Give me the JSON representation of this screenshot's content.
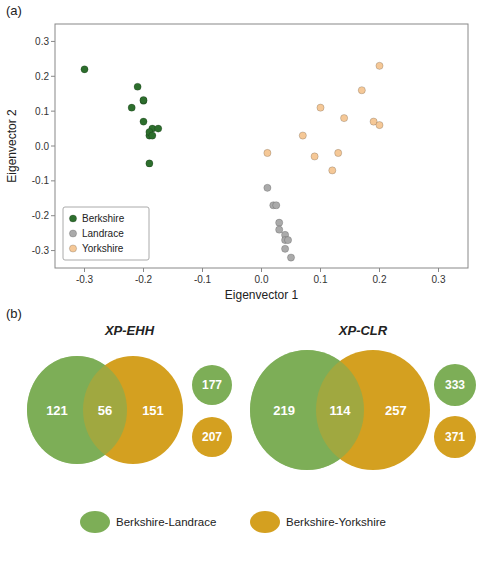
{
  "chart_data": [
    {
      "type": "scatter",
      "title": "(a)",
      "xlabel": "Eigenvector 1",
      "ylabel": "Eigenvector 2",
      "xlim": [
        -0.35,
        0.35
      ],
      "ylim": [
        -0.35,
        0.35
      ],
      "xticks": [
        -0.3,
        -0.2,
        -0.1,
        {
          "value": 0.0,
          "label": "0.0"
        },
        0.1,
        0.2,
        0.3
      ],
      "yticks": [
        -0.3,
        -0.2,
        -0.1,
        {
          "value": 0.0,
          "label": "0.0"
        },
        0.1,
        0.2,
        0.3
      ],
      "grid": false,
      "legend": "lower left",
      "series": [
        {
          "name": "Berkshire",
          "color": "#2d6e2d",
          "x": [
            -0.3,
            -0.21,
            -0.22,
            -0.2,
            -0.2,
            -0.2,
            -0.19,
            -0.185,
            -0.19,
            -0.19,
            -0.185,
            -0.175
          ],
          "y": [
            0.22,
            0.17,
            0.11,
            0.13,
            0.132,
            0.07,
            0.03,
            0.05,
            0.04,
            -0.05,
            0.03,
            0.05
          ]
        },
        {
          "name": "Landrace",
          "color": "#aaaaaa",
          "x": [
            0.01,
            0.02,
            0.025,
            0.03,
            0.03,
            0.04,
            0.04,
            0.04,
            0.045,
            0.05
          ],
          "y": [
            -0.12,
            -0.17,
            -0.17,
            -0.22,
            -0.24,
            -0.255,
            -0.27,
            -0.295,
            -0.27,
            -0.32
          ]
        },
        {
          "name": "Yorkshire",
          "color": "#f5c897",
          "x": [
            0.01,
            0.07,
            0.09,
            0.1,
            0.12,
            0.13,
            0.14,
            0.17,
            0.19,
            0.2,
            0.2
          ],
          "y": [
            -0.02,
            0.03,
            -0.03,
            0.11,
            -0.07,
            -0.02,
            0.08,
            0.16,
            0.07,
            0.06,
            0.23
          ]
        }
      ]
    },
    {
      "type": "venn",
      "title": "(b)",
      "data_labels": true,
      "series": [
        {
          "name": "Berkshire-Landrace",
          "color": "#7dae57"
        },
        {
          "name": "Berkshire-Yorkshire",
          "color": "#d4a020"
        }
      ],
      "panels": [
        {
          "title": "XP-EHH",
          "values": [
            121,
            56,
            151
          ],
          "totals": [
            177,
            207
          ]
        },
        {
          "title": "XP-CLR",
          "values": [
            219,
            114,
            257
          ],
          "totals": [
            333,
            371
          ]
        }
      ]
    }
  ]
}
